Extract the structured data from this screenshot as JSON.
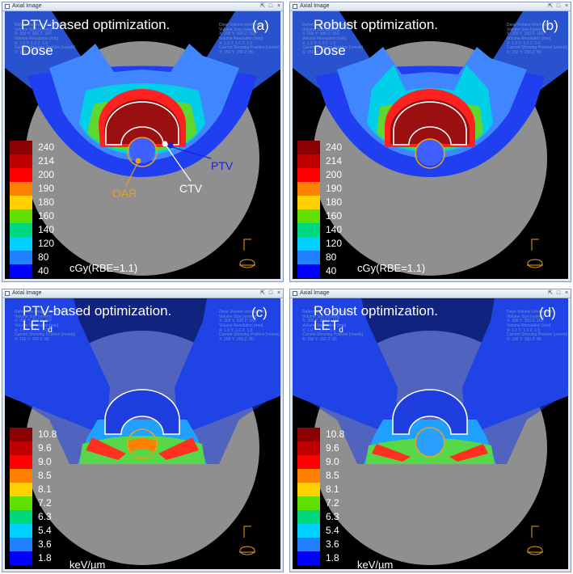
{
  "window_title": "Axial Image",
  "window_controls": [
    "⇱",
    "□",
    "×"
  ],
  "info_left": [
    "Reference Image Information",
    "Volume Size [voxels]",
    "X: 300 Y: 300 Z: 160",
    "Volume Resolution [mm]",
    "X: 1.0 Y: 1.0 Z: 1.0",
    "Current Showing Position [voxels]",
    "X: 150 Y: 150 Z: 80"
  ],
  "info_right": [
    "Dose Volume Information",
    "Volume Size [voxels]",
    "X: 300 Y: 300 Z: 160",
    "Volume Resolution [mm]",
    "X: 1.0 Y: 1.0 Z: 1.0",
    "Current Showing Position [voxels]",
    "X: 150 Y: 150 Z: 80"
  ],
  "panels": [
    {
      "tag": "(a)",
      "line1": "PTV-based optimization.",
      "line2_main": "Dose",
      "line2_sub": ""
    },
    {
      "tag": "(b)",
      "line1": "Robust optimization.",
      "line2_main": "Dose",
      "line2_sub": ""
    },
    {
      "tag": "(c)",
      "line1": "PTV-based optimization.",
      "line2_main": "LET",
      "line2_sub": "d"
    },
    {
      "tag": "(d)",
      "line1": "Robust optimization.",
      "line2_main": "LET",
      "line2_sub": "d"
    }
  ],
  "dose_legend": {
    "unit": "cGy(RBE=1.1)",
    "levels": [
      "240",
      "214",
      "200",
      "190",
      "180",
      "160",
      "140",
      "120",
      "80",
      "40"
    ],
    "colors": [
      "#8b0000",
      "#c00000",
      "#ff0000",
      "#ff8000",
      "#ffd000",
      "#60e000",
      "#00d880",
      "#00d0ff",
      "#2080ff",
      "#0000ff"
    ]
  },
  "let_legend": {
    "unit": "keV/µm",
    "levels": [
      "10.8",
      "9.6",
      "9.0",
      "8.5",
      "8.1",
      "7.2",
      "6.3",
      "5.4",
      "3.6",
      "1.8"
    ],
    "colors": [
      "#8b0000",
      "#c00000",
      "#ff0000",
      "#ff8000",
      "#ffd000",
      "#60e000",
      "#00d880",
      "#00d0ff",
      "#2080ff",
      "#0000ff"
    ]
  },
  "annotations": {
    "ptv": {
      "label": "PTV",
      "color": "#1f1fe0"
    },
    "ctv": {
      "label": "CTV",
      "color": "#ffffff"
    },
    "oar": {
      "label": "OAR",
      "color": "#e8a020"
    }
  }
}
